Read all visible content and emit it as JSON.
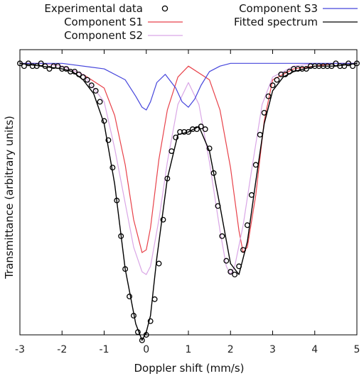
{
  "chart_data": {
    "type": "line",
    "title": "",
    "xlabel": "Doppler shift (mm/s)",
    "ylabel": "Transmittance (arbitrary units)",
    "xlim": [
      -3,
      5
    ],
    "xticks": [
      "-3",
      "-2",
      "-1",
      "0",
      "1",
      "2",
      "3",
      "4",
      "5"
    ],
    "xtick_values": [
      -3,
      -2,
      -1,
      0,
      1,
      2,
      3,
      4,
      5
    ],
    "ylim": [
      -1.0,
      0.04
    ],
    "y_ticks_shown": false,
    "grid": false,
    "legend": {
      "placement": "top",
      "entries": [
        {
          "label": "Experimental data",
          "style": "circle-marker",
          "color": "#000000"
        },
        {
          "label": "Component S1",
          "style": "line",
          "color": "#e8424a"
        },
        {
          "label": "Component S2",
          "style": "line",
          "color": "#d9a6e6"
        },
        {
          "label": "Component S3",
          "style": "line",
          "color": "#4646dc"
        },
        {
          "label": "Fitted spectrum",
          "style": "line",
          "color": "#000000"
        }
      ]
    },
    "series": [
      {
        "name": "Component S1",
        "color": "#e8424a",
        "x": [
          -3.0,
          -2.5,
          -2.0,
          -1.5,
          -1.0,
          -0.75,
          -0.5,
          -0.3,
          -0.1,
          0.0,
          0.1,
          0.3,
          0.5,
          0.75,
          1.0,
          1.5,
          1.75,
          2.0,
          2.2,
          2.3,
          2.4,
          2.6,
          2.8,
          3.0,
          3.5,
          4.0,
          4.5,
          5.0
        ],
        "y": [
          -0.01,
          -0.01,
          -0.02,
          -0.05,
          -0.1,
          -0.2,
          -0.38,
          -0.58,
          -0.7,
          -0.69,
          -0.61,
          -0.36,
          -0.18,
          -0.06,
          -0.02,
          -0.07,
          -0.18,
          -0.39,
          -0.62,
          -0.7,
          -0.68,
          -0.49,
          -0.22,
          -0.07,
          -0.03,
          -0.02,
          -0.01,
          -0.01
        ]
      },
      {
        "name": "Component S2",
        "color": "#d9a6e6",
        "x": [
          -3.0,
          -2.5,
          -2.0,
          -1.5,
          -1.0,
          -0.75,
          -0.5,
          -0.3,
          -0.1,
          0.0,
          0.1,
          0.3,
          0.5,
          0.75,
          1.0,
          1.25,
          1.5,
          1.75,
          1.9,
          2.0,
          2.1,
          2.3,
          2.5,
          2.75,
          3.0,
          3.5,
          4.0,
          5.0
        ],
        "y": [
          -0.01,
          -0.01,
          -0.02,
          -0.05,
          -0.15,
          -0.32,
          -0.52,
          -0.68,
          -0.77,
          -0.78,
          -0.75,
          -0.58,
          -0.37,
          -0.16,
          -0.08,
          -0.16,
          -0.37,
          -0.62,
          -0.75,
          -0.78,
          -0.75,
          -0.6,
          -0.4,
          -0.16,
          -0.06,
          -0.02,
          -0.01,
          -0.01
        ]
      },
      {
        "name": "Component S3",
        "color": "#4646dc",
        "x": [
          -3.0,
          -2.0,
          -1.0,
          -0.5,
          -0.25,
          -0.1,
          0.0,
          0.1,
          0.25,
          0.45,
          0.7,
          0.85,
          1.0,
          1.15,
          1.3,
          1.5,
          1.75,
          2.0,
          3.0,
          4.0,
          5.0
        ],
        "y": [
          -0.01,
          -0.01,
          -0.03,
          -0.07,
          -0.13,
          -0.17,
          -0.18,
          -0.15,
          -0.08,
          -0.05,
          -0.1,
          -0.15,
          -0.17,
          -0.14,
          -0.09,
          -0.04,
          -0.02,
          -0.01,
          -0.01,
          -0.01,
          -0.01
        ]
      },
      {
        "name": "Fitted spectrum",
        "color": "#000000",
        "x": [
          -3.0,
          -2.5,
          -2.0,
          -1.75,
          -1.5,
          -1.25,
          -1.0,
          -0.75,
          -0.5,
          -0.25,
          -0.1,
          0.0,
          0.1,
          0.25,
          0.5,
          0.75,
          1.0,
          1.25,
          1.5,
          1.75,
          2.0,
          2.2,
          2.4,
          2.6,
          2.8,
          3.0,
          3.25,
          3.5,
          3.75,
          4.0,
          4.5,
          5.0
        ],
        "y": [
          -0.01,
          -0.02,
          -0.03,
          -0.04,
          -0.07,
          -0.12,
          -0.23,
          -0.45,
          -0.76,
          -0.96,
          -1.02,
          -0.99,
          -0.93,
          -0.72,
          -0.43,
          -0.27,
          -0.26,
          -0.24,
          -0.33,
          -0.53,
          -0.74,
          -0.78,
          -0.66,
          -0.44,
          -0.23,
          -0.11,
          -0.06,
          -0.04,
          -0.03,
          -0.02,
          -0.02,
          -0.01
        ]
      },
      {
        "name": "Experimental data",
        "color": "#000000",
        "marker": "circle",
        "x": [
          -3.0,
          -2.9,
          -2.8,
          -2.7,
          -2.6,
          -2.5,
          -2.4,
          -2.3,
          -2.2,
          -2.1,
          -2.0,
          -1.9,
          -1.8,
          -1.7,
          -1.6,
          -1.5,
          -1.4,
          -1.3,
          -1.2,
          -1.1,
          -1.0,
          -0.9,
          -0.8,
          -0.7,
          -0.6,
          -0.5,
          -0.4,
          -0.3,
          -0.2,
          -0.1,
          0.0,
          0.1,
          0.2,
          0.3,
          0.4,
          0.5,
          0.6,
          0.7,
          0.8,
          0.9,
          1.0,
          1.1,
          1.2,
          1.3,
          1.4,
          1.5,
          1.6,
          1.7,
          1.8,
          1.9,
          2.0,
          2.1,
          2.2,
          2.3,
          2.4,
          2.5,
          2.6,
          2.7,
          2.8,
          2.9,
          3.0,
          3.1,
          3.2,
          3.3,
          3.4,
          3.5,
          3.6,
          3.7,
          3.8,
          3.9,
          4.0,
          4.1,
          4.2,
          4.3,
          4.4,
          4.5,
          4.6,
          4.7,
          4.8,
          4.9,
          5.0
        ],
        "y": [
          -0.01,
          -0.02,
          -0.01,
          -0.02,
          -0.02,
          -0.01,
          -0.02,
          -0.03,
          -0.02,
          -0.02,
          -0.03,
          -0.03,
          -0.04,
          -0.04,
          -0.05,
          -0.06,
          -0.07,
          -0.09,
          -0.11,
          -0.15,
          -0.22,
          -0.29,
          -0.39,
          -0.51,
          -0.64,
          -0.76,
          -0.86,
          -0.93,
          -0.99,
          -1.02,
          -1.0,
          -0.95,
          -0.87,
          -0.74,
          -0.58,
          -0.43,
          -0.33,
          -0.28,
          -0.26,
          -0.26,
          -0.26,
          -0.25,
          -0.25,
          -0.24,
          -0.25,
          -0.32,
          -0.41,
          -0.53,
          -0.64,
          -0.73,
          -0.77,
          -0.78,
          -0.75,
          -0.69,
          -0.6,
          -0.49,
          -0.38,
          -0.27,
          -0.19,
          -0.13,
          -0.09,
          -0.07,
          -0.05,
          -0.05,
          -0.04,
          -0.03,
          -0.03,
          -0.03,
          -0.03,
          -0.02,
          -0.02,
          -0.02,
          -0.02,
          -0.02,
          -0.02,
          -0.01,
          -0.02,
          -0.02,
          -0.01,
          -0.02,
          -0.01
        ]
      }
    ]
  }
}
